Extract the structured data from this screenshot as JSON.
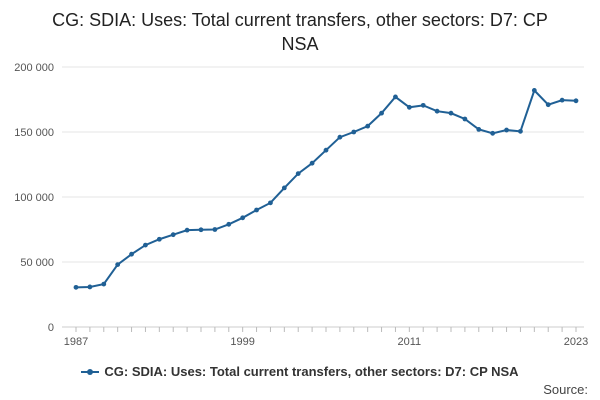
{
  "chart_data": {
    "type": "line",
    "title": "CG: SDIA: Uses: Total current transfers, other sectors: D7: CP NSA",
    "xlabel": "",
    "ylabel": "",
    "x": [
      1987,
      1988,
      1989,
      1990,
      1991,
      1992,
      1993,
      1994,
      1995,
      1996,
      1997,
      1998,
      1999,
      2000,
      2001,
      2002,
      2003,
      2004,
      2005,
      2006,
      2007,
      2008,
      2009,
      2010,
      2011,
      2012,
      2013,
      2014,
      2015,
      2016,
      2017,
      2018,
      2019,
      2020,
      2021,
      2022,
      2023
    ],
    "series": [
      {
        "name": "CG: SDIA: Uses: Total current transfers, other sectors: D7: CP NSA",
        "values": [
          30500,
          30800,
          33000,
          48000,
          56000,
          63000,
          67500,
          71000,
          74500,
          74800,
          75000,
          79000,
          84000,
          90000,
          95500,
          107000,
          118000,
          126000,
          136000,
          146000,
          150000,
          154500,
          164500,
          177000,
          169000,
          170500,
          166000,
          164500,
          160000,
          152000,
          149000,
          151500,
          150500,
          182000,
          171000,
          174500,
          174000
        ]
      }
    ],
    "ylim": [
      0,
      200000
    ],
    "y_ticks": [
      0,
      50000,
      100000,
      150000,
      200000
    ],
    "y_tick_labels": [
      "0",
      "50 000",
      "100 000",
      "150 000",
      "200 000"
    ],
    "x_tick_labels": [
      "1987",
      "1999",
      "2011",
      "2023"
    ],
    "grid": true,
    "legend_position": "bottom",
    "color": "#206095",
    "source_label": "Source:"
  }
}
